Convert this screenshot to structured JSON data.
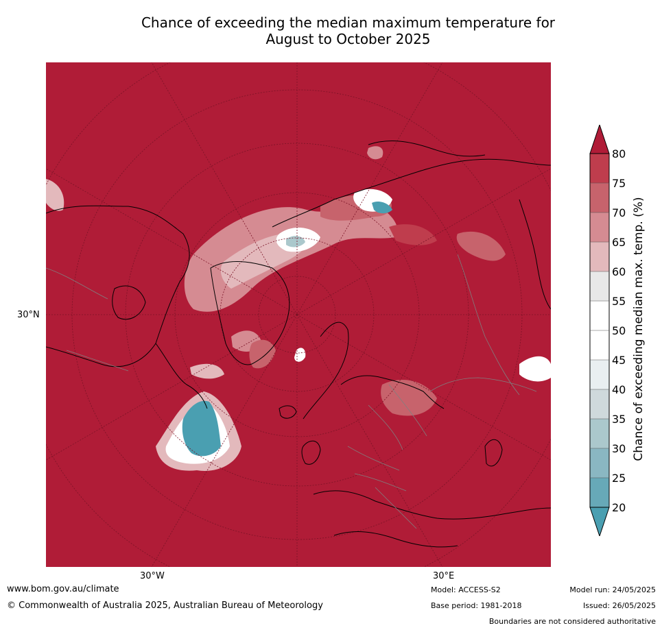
{
  "title_line1": "Chance of exceeding the median maximum temperature for",
  "title_line2": "August to October 2025",
  "map": {
    "lat_label": "30°N",
    "lon_labels": [
      "30°W",
      "30°E"
    ]
  },
  "colorbar": {
    "title": "Chance of exceeding median max. temp. (%)",
    "ticks": [
      "80",
      "75",
      "70",
      "65",
      "60",
      "55",
      "50",
      "45",
      "40",
      "35",
      "30",
      "25",
      "20"
    ],
    "colors": {
      "above_80": "#b01c37",
      "75_80": "#bf3d4d",
      "70_75": "#c7636c",
      "65_70": "#d58b92",
      "60_65": "#e3b9bc",
      "55_60": "#e8e8e8",
      "50_55": "#ffffff",
      "45_50": "#ffffff",
      "40_45": "#e9eff1",
      "35_40": "#cfd9dc",
      "30_35": "#abc8cc",
      "25_30": "#8ab7c2",
      "20_25": "#67a9b8",
      "below_20": "#4a9fb1"
    }
  },
  "footer": {
    "website": "www.bom.gov.au/climate",
    "copyright": "© Commonwealth of Australia 2025, Australian Bureau of Meteorology",
    "model": "Model: ACCESS-S2",
    "base_period": "Base period: 1981-2018",
    "model_run": "Model run: 24/05/2025",
    "issued": "Issued: 26/05/2025",
    "disclaimer": "Boundaries are not considered authoritative"
  }
}
